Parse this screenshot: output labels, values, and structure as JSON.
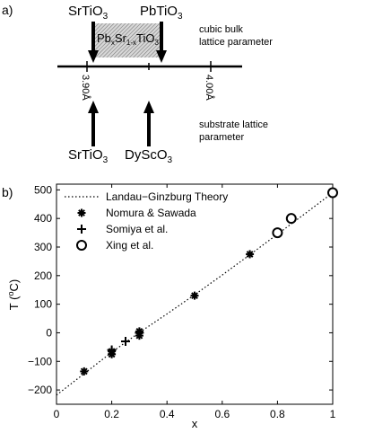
{
  "panel_a": {
    "label": "a)",
    "top_left_compound": {
      "main": "SrTiO",
      "sub": "3"
    },
    "top_right_compound": {
      "main": "PbTiO",
      "sub": "3"
    },
    "solid_solution": {
      "p1": "Pb",
      "s1": "x",
      "p2": "Sr",
      "s2": "1-x",
      "p3": "TiO",
      "s3": "3"
    },
    "bulk_note": [
      "cubic bulk",
      "lattice parameter"
    ],
    "tick_labels": [
      "3.90Å",
      "4.00Å"
    ],
    "substrate_note": [
      "substrate lattice",
      "parameter"
    ],
    "bottom_left_compound": {
      "main": "SrTiO",
      "sub": "3"
    },
    "bottom_right_compound": {
      "main": "DyScO",
      "sub": "3"
    }
  },
  "panel_b": {
    "label": "b)"
  },
  "chart_data": {
    "type": "scatter",
    "xlabel": "x",
    "ylabel": "T (°C)",
    "ylabel_parts": {
      "pre": "T (",
      "sup": "o",
      "post": "C)"
    },
    "xlim": [
      0,
      1
    ],
    "ylim": [
      -250,
      520
    ],
    "x_ticks": [
      0,
      0.2,
      0.4,
      0.6,
      0.8,
      1
    ],
    "x_tick_labels": [
      "0",
      "0.2",
      "0.4",
      "0.6",
      "0.8",
      "1"
    ],
    "y_ticks": [
      -200,
      -100,
      0,
      100,
      200,
      300,
      400,
      500
    ],
    "y_tick_labels": [
      "−200",
      "−100",
      "0",
      "100",
      "200",
      "300",
      "400",
      "500"
    ],
    "legend_position": "top-left",
    "series": [
      {
        "name": "Landau−Ginzburg Theory",
        "style": "dotted-line",
        "x": [
          0,
          0.1,
          0.2,
          0.3,
          0.4,
          0.5,
          0.6,
          0.7,
          0.8,
          0.9,
          1.0
        ],
        "y": [
          -218,
          -143,
          -68,
          1,
          66,
          133,
          202,
          273,
          345,
          417,
          490
        ]
      },
      {
        "name": "Nomura & Sawada",
        "marker": "asterisk",
        "x": [
          0.1,
          0.2,
          0.2,
          0.3,
          0.3,
          0.5,
          0.7
        ],
        "y": [
          -135,
          -75,
          -65,
          -10,
          5,
          130,
          275
        ]
      },
      {
        "name": "Somiya et al.",
        "marker": "plus",
        "x": [
          0.2,
          0.25,
          0.3
        ],
        "y": [
          -60,
          -30,
          0
        ]
      },
      {
        "name": "Xing et al.",
        "marker": "circle",
        "x": [
          0.8,
          0.85,
          1.0
        ],
        "y": [
          350,
          400,
          490
        ]
      }
    ]
  }
}
